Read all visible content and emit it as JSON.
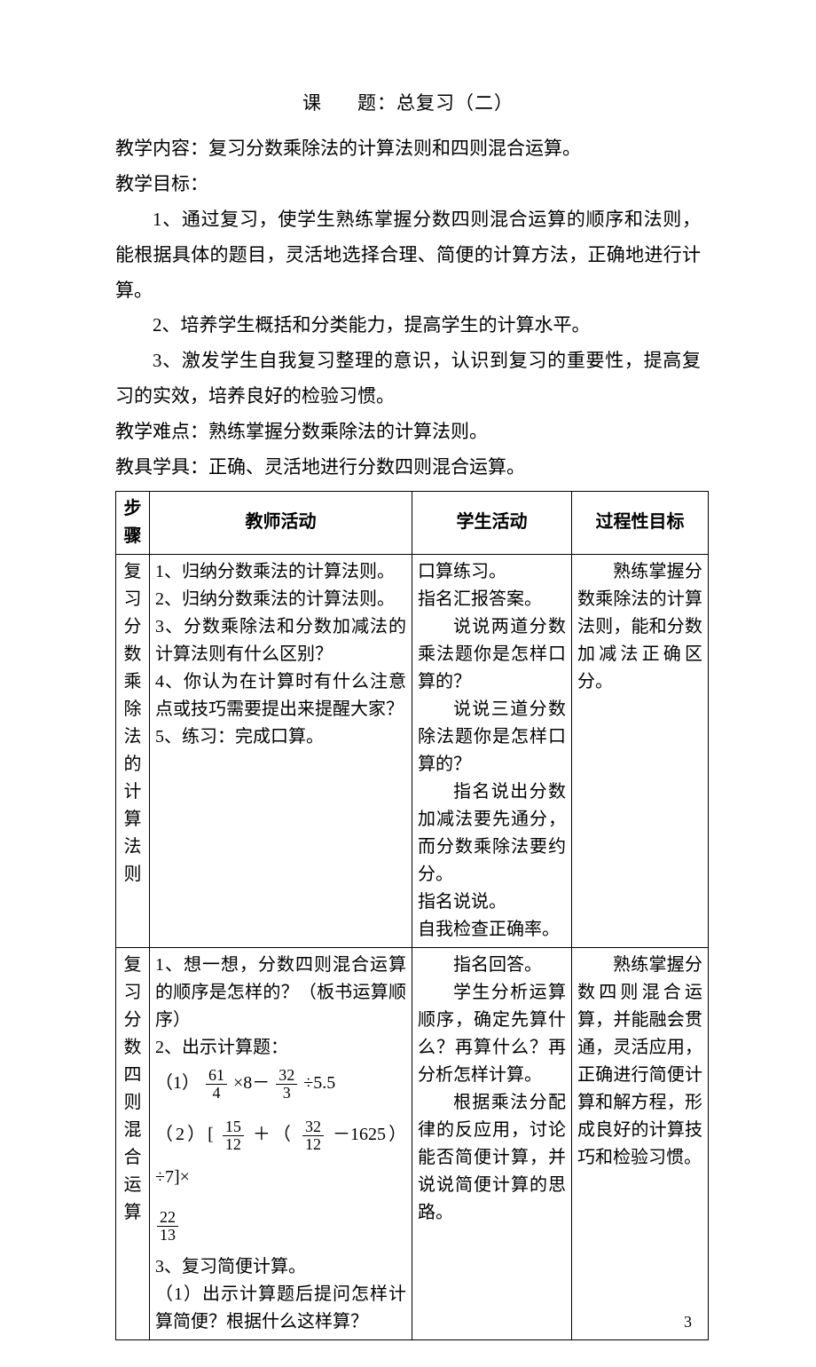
{
  "title_prefix": "课",
  "title_suffix": "题：总复习（二）",
  "heading_content_label": "教学内容：",
  "heading_content_text": "复习分数乘除法的计算法则和四则混合运算。",
  "heading_goal_label": "教学目标：",
  "goal1": "1、通过复习，使学生熟练掌握分数四则混合运算的顺序和法则，能根据具体的题目，灵活地选择合理、简便的计算方法，正确地进行计算。",
  "goal2": "2、培养学生概括和分类能力，提高学生的计算水平。",
  "goal3": "3、激发学生自我复习整理的意识，认识到复习的重要性，提高复习的实效，培养良好的检验习惯。",
  "heading_difficulty_label": "教学难点：",
  "heading_difficulty_text": "熟练掌握分数乘除法的计算法则。",
  "heading_tools_label": "教具学具：",
  "heading_tools_text": "正确、灵活地进行分数四则混合运算。",
  "table": {
    "header": [
      "步骤",
      "教师活动",
      "学生活动",
      "过程性目标"
    ],
    "row1": {
      "step_chars": [
        "复",
        "习",
        "分",
        "数",
        "乘",
        "除",
        "法",
        "的",
        "计",
        "算",
        "法",
        "则"
      ],
      "teacher": [
        "1、归纳分数乘法的计算法则。",
        "2、归纳分数乘法的计算法则。",
        "3、分数乘除法和分数加减法的计算法则有什么区别？",
        "4、你认为在计算时有什么注意点或技巧需要提出来提醒大家？",
        "5、练习：完成口算。"
      ],
      "student": [
        "口算练习。",
        "指名汇报答案。",
        "说说两道分数乘法题你是怎样口算的？",
        "说说三道分数除法题你是怎样口算的？",
        "指名说出分数加减法要先通分，而分数乘除法要约分。",
        "指名说说。",
        "自我检查正确率。"
      ],
      "student_indent_flags": [
        false,
        false,
        true,
        true,
        true,
        false,
        false
      ],
      "goal": "熟练掌握分数乘除法的计算法则，能和分数加减法正确区分。"
    },
    "row2": {
      "step_chars": [
        "复",
        "习",
        "分",
        "数",
        "四",
        "则",
        "混",
        "合",
        "运",
        "算"
      ],
      "teacher_p1": "1、想一想，分数四则混合运算的顺序是怎样的？（板书运算顺序）",
      "teacher_p2": "2、出示计算题：",
      "expr1_label": "（1）",
      "expr1_f1_num": "61",
      "expr1_f1_den": "4",
      "expr1_mid1": "×8－",
      "expr1_f2_num": "32",
      "expr1_f2_den": "3",
      "expr1_tail": "÷5.5",
      "expr2_label": "（2）[",
      "expr2_f1_num": "15",
      "expr2_f1_den": "12",
      "expr2_mid1": "＋（",
      "expr2_f2_num": "32",
      "expr2_f2_den": "12",
      "expr2_tail": "－1625）÷7]×",
      "expr2b_num": "22",
      "expr2b_den": "13",
      "teacher_p3": "3、复习简便计算。",
      "teacher_p4": "（1）出示计算题后提问怎样计算简便？根据什么这样算？",
      "student": [
        "指名回答。",
        "学生分析运算顺序，确定先算什么？再算什么？再分析怎样计算。",
        "根据乘法分配律的反应用，讨论能否简便计算，并说说简便计算的思路。"
      ],
      "student_indent_flags": [
        true,
        true,
        true
      ],
      "goal": "熟练掌握分数四则混合运算，并能融会贯通，灵活应用，正确进行简便计算和解方程，形成良好的计算技巧和检验习惯。"
    }
  },
  "page_number": "3",
  "colors": {
    "text": "#000000",
    "bg": "#ffffff",
    "border": "#000000"
  }
}
